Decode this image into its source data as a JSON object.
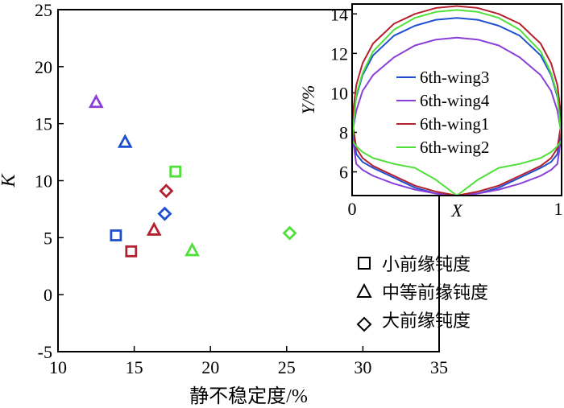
{
  "chart_data": [
    {
      "type": "scatter",
      "title": "",
      "xlabel": "静不稳定度/%",
      "ylabel": "K",
      "xlim": [
        10,
        35
      ],
      "ylim": [
        -5,
        25
      ],
      "xticks": [
        10,
        15,
        20,
        25,
        30,
        35
      ],
      "yticks": [
        -5,
        0,
        5,
        10,
        15,
        20,
        25
      ],
      "grid": false,
      "legend_position": "bottom-right",
      "legend": [
        {
          "marker": "square",
          "label": "小前缘钝度"
        },
        {
          "marker": "triangle",
          "label": "中等前缘钝度"
        },
        {
          "marker": "diamond",
          "label": "大前缘钝度"
        }
      ],
      "points": [
        {
          "wing": "6th-wing3",
          "marker": "square",
          "x": 13.8,
          "y": 5.2,
          "color": "#1f4fd1"
        },
        {
          "wing": "6th-wing1",
          "marker": "square",
          "x": 14.8,
          "y": 3.8,
          "color": "#b5202e"
        },
        {
          "wing": "6th-wing2",
          "marker": "square",
          "x": 17.7,
          "y": 10.8,
          "color": "#4fe03a"
        },
        {
          "wing": "6th-wing4",
          "marker": "triangle",
          "x": 12.5,
          "y": 16.9,
          "color": "#8a3fd8"
        },
        {
          "wing": "6th-wing3",
          "marker": "triangle",
          "x": 14.4,
          "y": 13.4,
          "color": "#1f4fd1"
        },
        {
          "wing": "6th-wing1",
          "marker": "triangle",
          "x": 16.3,
          "y": 5.7,
          "color": "#b5202e"
        },
        {
          "wing": "6th-wing2",
          "marker": "triangle",
          "x": 18.8,
          "y": 3.9,
          "color": "#4fe03a"
        },
        {
          "wing": "6th-wing1",
          "marker": "diamond",
          "x": 17.1,
          "y": 9.1,
          "color": "#b5202e"
        },
        {
          "wing": "6th-wing3",
          "marker": "diamond",
          "x": 17.0,
          "y": 7.1,
          "color": "#1f4fd1"
        },
        {
          "wing": "6th-wing2",
          "marker": "diamond",
          "x": 25.2,
          "y": 5.4,
          "color": "#4fe03a"
        }
      ]
    },
    {
      "type": "line",
      "title": "",
      "xlabel": "X",
      "ylabel": "Y/%",
      "xlim": [
        0,
        1
      ],
      "ylim": [
        4.8,
        14.5
      ],
      "xticks": [
        0,
        1
      ],
      "xtick_labels": [
        "0",
        "1"
      ],
      "yticks": [
        6,
        8,
        10,
        12,
        14
      ],
      "legend_position": "center",
      "series": [
        {
          "name": "6th-wing3",
          "color": "#1f4fd1",
          "x": [
            0,
            0.02,
            0.05,
            0.1,
            0.2,
            0.3,
            0.4,
            0.5,
            0.6,
            0.7,
            0.8,
            0.9,
            0.95,
            0.98,
            1,
            0.98,
            0.95,
            0.9,
            0.8,
            0.7,
            0.6,
            0.5,
            0.4,
            0.3,
            0.2,
            0.1,
            0.05,
            0.02,
            0
          ],
          "y": [
            8.4,
            9.8,
            10.9,
            11.9,
            12.9,
            13.4,
            13.7,
            13.8,
            13.7,
            13.4,
            12.9,
            11.9,
            10.9,
            9.8,
            8.4,
            6.9,
            6.5,
            6.2,
            5.7,
            5.2,
            4.9,
            4.8,
            4.9,
            5.2,
            5.7,
            6.2,
            6.5,
            6.9,
            8.4
          ]
        },
        {
          "name": "6th-wing4",
          "color": "#8a3fd8",
          "x": [
            0,
            0.02,
            0.05,
            0.1,
            0.2,
            0.3,
            0.4,
            0.5,
            0.6,
            0.7,
            0.8,
            0.9,
            0.95,
            0.98,
            1,
            0.98,
            0.95,
            0.9,
            0.8,
            0.7,
            0.6,
            0.5,
            0.4,
            0.3,
            0.2,
            0.1,
            0.05,
            0.02,
            0
          ],
          "y": [
            7.9,
            9.1,
            10.1,
            10.9,
            11.8,
            12.4,
            12.7,
            12.8,
            12.7,
            12.4,
            11.8,
            10.9,
            10.1,
            9.1,
            7.9,
            6.4,
            6.1,
            5.8,
            5.4,
            5.1,
            4.9,
            4.8,
            4.9,
            5.1,
            5.4,
            5.8,
            6.1,
            6.4,
            7.9
          ]
        },
        {
          "name": "6th-wing1",
          "color": "#b5202e",
          "x": [
            0,
            0.02,
            0.05,
            0.1,
            0.2,
            0.3,
            0.4,
            0.5,
            0.6,
            0.7,
            0.8,
            0.9,
            0.95,
            0.98,
            1,
            0.98,
            0.95,
            0.9,
            0.8,
            0.7,
            0.6,
            0.5,
            0.4,
            0.3,
            0.2,
            0.1,
            0.05,
            0.02,
            0
          ],
          "y": [
            8.6,
            10.4,
            11.5,
            12.5,
            13.5,
            14.0,
            14.3,
            14.4,
            14.3,
            14.0,
            13.5,
            12.5,
            11.5,
            10.4,
            8.6,
            7.2,
            6.7,
            6.3,
            5.8,
            5.3,
            5.0,
            4.8,
            5.0,
            5.3,
            5.8,
            6.3,
            6.7,
            7.2,
            8.6
          ]
        },
        {
          "name": "6th-wing2",
          "color": "#4fe03a",
          "x": [
            0,
            0.02,
            0.05,
            0.1,
            0.2,
            0.3,
            0.4,
            0.5,
            0.6,
            0.7,
            0.8,
            0.9,
            0.95,
            0.98,
            1,
            0.98,
            0.95,
            0.9,
            0.8,
            0.7,
            0.6,
            0.5,
            0.4,
            0.3,
            0.2,
            0.1,
            0.05,
            0.02,
            0
          ],
          "y": [
            7.6,
            9.9,
            11.0,
            12.1,
            13.2,
            13.8,
            14.1,
            14.2,
            14.1,
            13.8,
            13.2,
            12.1,
            11.0,
            9.9,
            7.6,
            7.3,
            7.0,
            6.7,
            6.4,
            6.2,
            5.6,
            4.8,
            5.6,
            6.2,
            6.4,
            6.7,
            7.0,
            7.3,
            7.6
          ]
        }
      ]
    }
  ]
}
